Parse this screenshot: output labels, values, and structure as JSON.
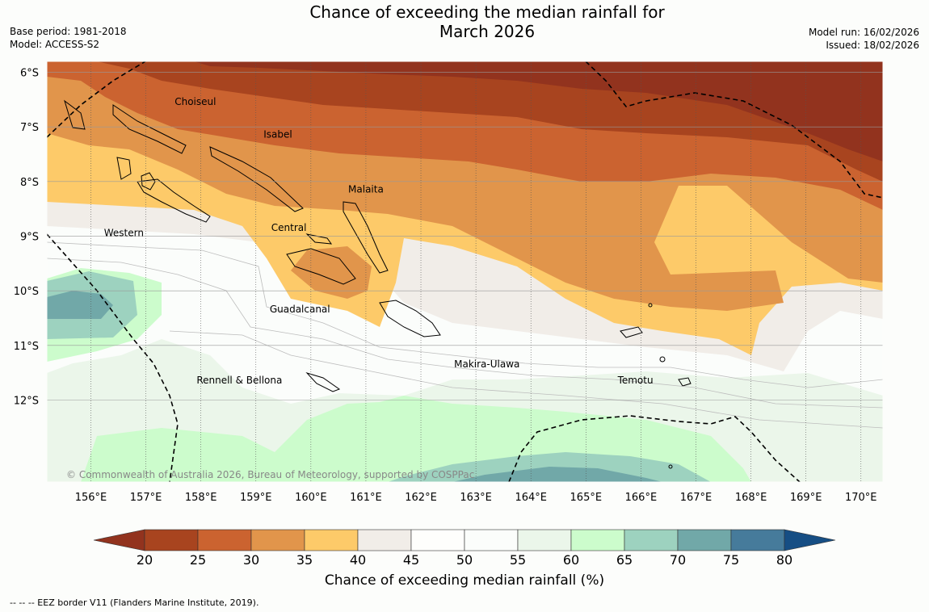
{
  "title_lines": [
    "Chance of exceeding the median rainfall for",
    "March 2026"
  ],
  "meta_left": [
    "Base period: 1981-2018",
    "Model: ACCESS-S2"
  ],
  "meta_right": [
    "Model run: 16/02/2026",
    "Issued: 18/02/2026"
  ],
  "map": {
    "lon_range": [
      155.2,
      170.4
    ],
    "lat_range": [
      -13.5,
      -5.8
    ],
    "lon_ticks": [
      "156°E",
      "157°E",
      "158°E",
      "159°E",
      "160°E",
      "161°E",
      "162°E",
      "163°E",
      "164°E",
      "165°E",
      "166°E",
      "167°E",
      "168°E",
      "169°E",
      "170°E"
    ],
    "lat_ticks": [
      "6°S",
      "7°S",
      "8°S",
      "9°S",
      "10°S",
      "11°S",
      "12°S"
    ],
    "province_labels": [
      {
        "text": "Choiseul",
        "lon": 157.9,
        "lat": -6.6
      },
      {
        "text": "Isabel",
        "lon": 159.4,
        "lat": -7.2
      },
      {
        "text": "Malaita",
        "lon": 161.0,
        "lat": -8.2
      },
      {
        "text": "Central",
        "lon": 159.6,
        "lat": -8.9
      },
      {
        "text": "Western",
        "lon": 156.6,
        "lat": -9.0
      },
      {
        "text": "Guadalcanal",
        "lon": 159.8,
        "lat": -10.4
      },
      {
        "text": "Makira-Ulawa",
        "lon": 163.2,
        "lat": -11.4
      },
      {
        "text": "Rennell & Bellona",
        "lon": 158.7,
        "lat": -11.7
      },
      {
        "text": "Temotu",
        "lon": 165.9,
        "lat": -11.7
      }
    ],
    "copyright": "© Commonwealth of Australia 2026, Bureau of Meteorology, supported by COSPPac"
  },
  "colorbar": {
    "title": "Chance of exceeding median rainfall (%)",
    "ticks": [
      "20",
      "25",
      "30",
      "35",
      "40",
      "45",
      "50",
      "55",
      "60",
      "65",
      "70",
      "75",
      "80"
    ],
    "colors": [
      "#a8441f",
      "#cb6330",
      "#e1954b",
      "#fdca69",
      "#f1ede8",
      "#fefefc",
      "#fbfdfb",
      "#ebf6ea",
      "#ccfccc",
      "#9dd2bf",
      "#71a8a8",
      "#467b9b"
    ],
    "under_color": "#92331e",
    "over_color": "#164e84"
  },
  "footnote": "--  --  -- EEZ border V11 (Flanders Marine Institute, 2019)."
}
